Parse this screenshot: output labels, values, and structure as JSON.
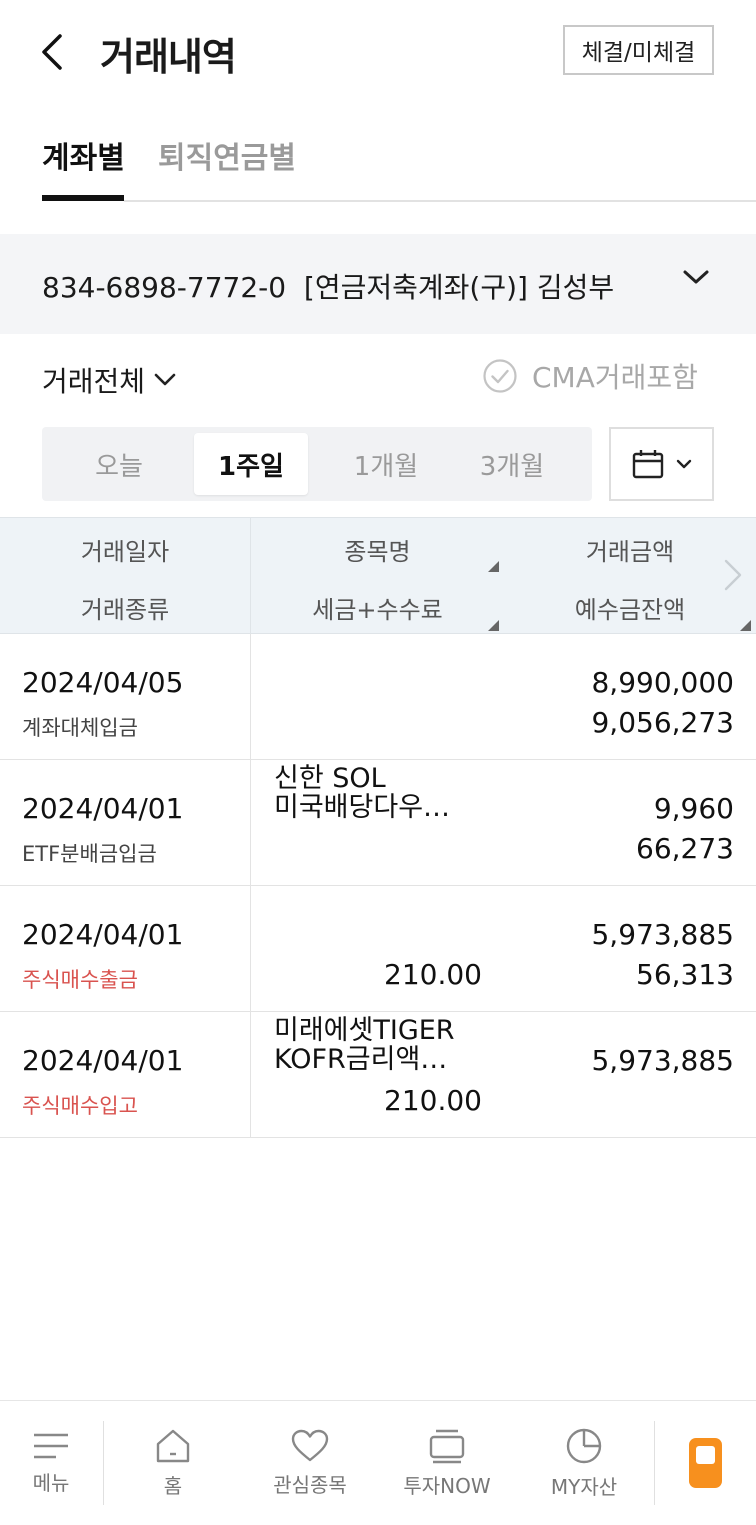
{
  "header": {
    "title": "거래내역",
    "order_status_button": "체결/미체결"
  },
  "tabs": [
    {
      "label": "계좌별",
      "active": true
    },
    {
      "label": "퇴직연금별",
      "active": false
    }
  ],
  "account": {
    "number": "834-6898-7772-0",
    "type": "[연금저축계좌(구)]",
    "owner": "김성부"
  },
  "filter": {
    "transaction_type": "거래전체",
    "cma_label": "CMA거래포함",
    "cma_checked": false
  },
  "period": {
    "options": [
      "오늘",
      "1주일",
      "1개월",
      "3개월"
    ],
    "selected": "1주일"
  },
  "table": {
    "headers": {
      "date": "거래일자",
      "type": "거래종류",
      "name": "종목명",
      "fee": "세금+수수료",
      "amount": "거래금액",
      "balance": "예수금잔액"
    },
    "rows": [
      {
        "date": "2024/04/05",
        "type": "계좌대체입금",
        "type_color": "#444444",
        "name": [
          "",
          ""
        ],
        "fee": "",
        "amount": "8,990,000",
        "balance": "9,056,273"
      },
      {
        "date": "2024/04/01",
        "type": "ETF분배금입금",
        "type_color": "#444444",
        "name": [
          "신한 SOL",
          "미국배당다우…"
        ],
        "fee": "",
        "amount": "9,960",
        "balance": "66,273"
      },
      {
        "date": "2024/04/01",
        "type": "주식매수출금",
        "type_color": "#d9534f",
        "name": [
          "",
          ""
        ],
        "fee": "210.00",
        "amount": "5,973,885",
        "balance": "56,313"
      },
      {
        "date": "2024/04/01",
        "type": "주식매수입고",
        "type_color": "#d9534f",
        "name": [
          "미래에셋TIGER",
          "KOFR금리액…"
        ],
        "fee": "210.00",
        "amount": "5,973,885",
        "balance": ""
      }
    ]
  },
  "bottom_nav": {
    "menu": "메뉴",
    "home": "홈",
    "watchlist": "관심종목",
    "invest_now": "투자NOW",
    "my_assets": "MY자산"
  },
  "colors": {
    "accent_orange": "#f7901e",
    "sell_red": "#d9534f"
  }
}
